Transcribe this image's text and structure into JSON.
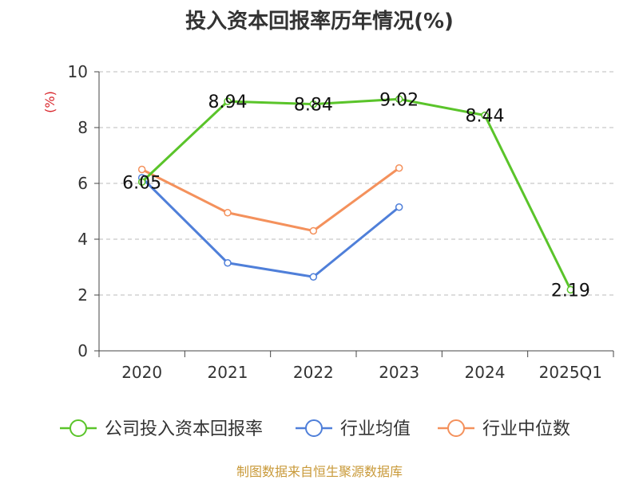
{
  "chart_data": {
    "type": "line",
    "title": "投入资本回报率历年情况(%)",
    "ylabel": "(%)",
    "xlabel": "",
    "ylim": [
      0,
      10
    ],
    "yticks": [
      0,
      2,
      4,
      6,
      8,
      10
    ],
    "grid": true,
    "legend_position": "bottom",
    "categories": [
      "2020",
      "2021",
      "2022",
      "2023",
      "2024",
      "2025Q1"
    ],
    "series": [
      {
        "name": "公司投入资本回报率",
        "color": "#5ac42a",
        "values": [
          6.05,
          8.94,
          8.84,
          9.02,
          8.44,
          2.19
        ],
        "labels": [
          "6.05",
          "8.94",
          "8.84",
          "9.02",
          "8.44",
          "2.19"
        ]
      },
      {
        "name": "行业均值",
        "color": "#4f7fd9",
        "values": [
          6.2,
          3.15,
          2.65,
          5.15,
          null,
          null
        ]
      },
      {
        "name": "行业中位数",
        "color": "#f4915c",
        "values": [
          6.5,
          4.95,
          4.3,
          6.55,
          null,
          null
        ]
      }
    ],
    "source": "制图数据来自恒生聚源数据库"
  }
}
